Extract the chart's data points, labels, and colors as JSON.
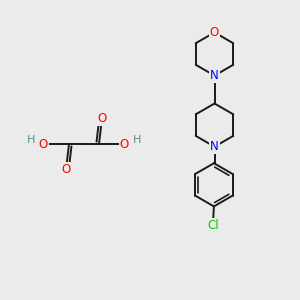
{
  "bg_color": "#ebebeb",
  "bond_color": "#1a1a1a",
  "N_color": "#0000ff",
  "O_color": "#ff0000",
  "Cl_color": "#00cc00",
  "H_color": "#5f8a8a",
  "line_width": 1.4,
  "figsize": [
    3.0,
    3.0
  ],
  "dpi": 100,
  "xlim": [
    0,
    10
  ],
  "ylim": [
    0,
    10
  ]
}
